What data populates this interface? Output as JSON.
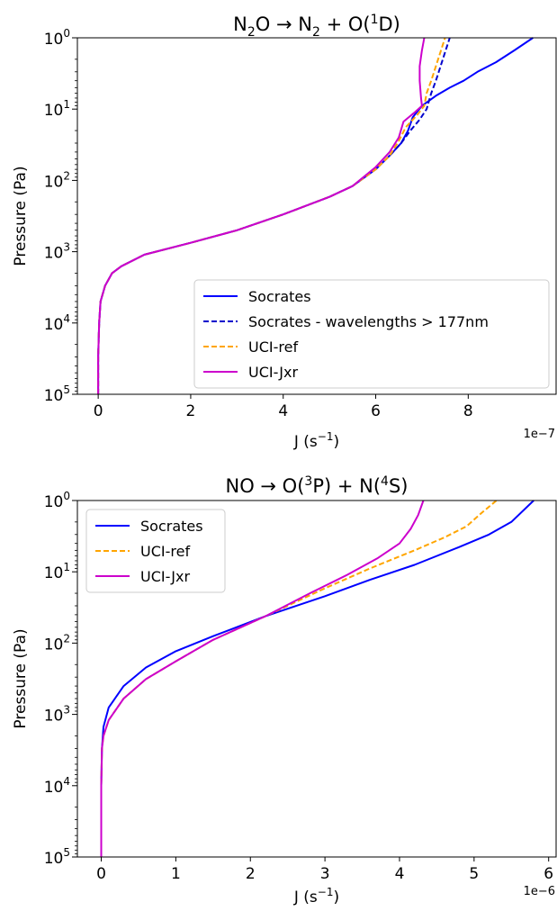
{
  "chart_data": [
    {
      "type": "line",
      "title": "N2O → N2 + O(1D)",
      "title_parts": {
        "a": "N",
        "a_sub": "2",
        "b": "O → N",
        "b_sub": "2",
        "c": " + O(",
        "c_sup": "1",
        "d": "D)"
      },
      "xlabel_parts": {
        "a": "J (s",
        "sup": "−1",
        "b": ")"
      },
      "ylabel": "Pressure (Pa)",
      "x_scale_label": "1e−7",
      "x_scale": 1e-07,
      "xlim": [
        -0.45,
        9.9
      ],
      "ylim": [
        100000,
        1
      ],
      "y_scale": "log",
      "x_ticks": [
        0,
        2,
        4,
        6,
        8
      ],
      "x_tick_labels": [
        "0",
        "2",
        "4",
        "6",
        "8"
      ],
      "y_ticks": [
        {
          "value": 1,
          "base": "10",
          "exp": "0"
        },
        {
          "value": 10,
          "base": "10",
          "exp": "1"
        },
        {
          "value": 100,
          "base": "10",
          "exp": "2"
        },
        {
          "value": 1000,
          "base": "10",
          "exp": "3"
        },
        {
          "value": 10000,
          "base": "10",
          "exp": "4"
        },
        {
          "value": 100000,
          "base": "10",
          "exp": "5"
        }
      ],
      "legend_position": "lower-right",
      "series": [
        {
          "name": "Socrates",
          "color": "#0000ff",
          "dash": "solid",
          "points": [
            [
              0,
              100000
            ],
            [
              0,
              30000
            ],
            [
              0.02,
              10000
            ],
            [
              0.05,
              5000
            ],
            [
              0.15,
              3000
            ],
            [
              0.3,
              2000
            ],
            [
              0.5,
              1600
            ],
            [
              1.0,
              1100
            ],
            [
              2.0,
              750
            ],
            [
              3.0,
              500
            ],
            [
              4.0,
              300
            ],
            [
              5.0,
              170
            ],
            [
              5.5,
              120
            ],
            [
              6.0,
              70
            ],
            [
              6.3,
              45
            ],
            [
              6.55,
              30
            ],
            [
              6.7,
              20
            ],
            [
              6.8,
              13
            ],
            [
              7.0,
              9
            ],
            [
              7.3,
              6.5
            ],
            [
              7.6,
              5
            ],
            [
              7.9,
              4
            ],
            [
              8.2,
              3
            ],
            [
              8.6,
              2.2
            ],
            [
              9.0,
              1.5
            ],
            [
              9.4,
              1
            ]
          ]
        },
        {
          "name": "Socrates - wavelengths > 177nm",
          "color": "#0000cc",
          "dash": "dashed",
          "points": [
            [
              0,
              100000
            ],
            [
              0,
              30000
            ],
            [
              0.02,
              10000
            ],
            [
              0.05,
              5000
            ],
            [
              0.15,
              3000
            ],
            [
              0.3,
              2000
            ],
            [
              0.5,
              1600
            ],
            [
              1.0,
              1100
            ],
            [
              2.0,
              750
            ],
            [
              3.0,
              500
            ],
            [
              4.0,
              300
            ],
            [
              5.0,
              170
            ],
            [
              5.5,
              120
            ],
            [
              6.0,
              70
            ],
            [
              6.3,
              45
            ],
            [
              6.55,
              30
            ],
            [
              6.75,
              20
            ],
            [
              6.95,
              14
            ],
            [
              7.1,
              10
            ],
            [
              7.2,
              6
            ],
            [
              7.3,
              4
            ],
            [
              7.45,
              2
            ],
            [
              7.6,
              1
            ]
          ]
        },
        {
          "name": "UCI-ref",
          "color": "#ffa500",
          "dash": "dashed",
          "points": [
            [
              0,
              100000
            ],
            [
              0,
              30000
            ],
            [
              0.02,
              10000
            ],
            [
              0.05,
              5000
            ],
            [
              0.15,
              3000
            ],
            [
              0.3,
              2000
            ],
            [
              0.5,
              1600
            ],
            [
              1.0,
              1100
            ],
            [
              2.0,
              750
            ],
            [
              3.0,
              500
            ],
            [
              4.0,
              300
            ],
            [
              5.0,
              170
            ],
            [
              5.5,
              120
            ],
            [
              6.0,
              70
            ],
            [
              6.3,
              45
            ],
            [
              6.5,
              28
            ],
            [
              6.65,
              18
            ],
            [
              6.9,
              12
            ],
            [
              7.05,
              9
            ],
            [
              7.1,
              6
            ],
            [
              7.2,
              4
            ],
            [
              7.35,
              2
            ],
            [
              7.5,
              1
            ]
          ]
        },
        {
          "name": "UCI-Jxr",
          "color": "#cc00cc",
          "dash": "solid",
          "points": [
            [
              0,
              100000
            ],
            [
              0,
              30000
            ],
            [
              0.02,
              10000
            ],
            [
              0.05,
              5000
            ],
            [
              0.15,
              3000
            ],
            [
              0.3,
              2000
            ],
            [
              0.5,
              1600
            ],
            [
              1.0,
              1100
            ],
            [
              2.0,
              750
            ],
            [
              3.0,
              500
            ],
            [
              4.0,
              300
            ],
            [
              5.0,
              170
            ],
            [
              5.5,
              120
            ],
            [
              6.0,
              65
            ],
            [
              6.3,
              40
            ],
            [
              6.5,
              25
            ],
            [
              6.6,
              15
            ],
            [
              6.85,
              11
            ],
            [
              7.0,
              9
            ],
            [
              6.98,
              7
            ],
            [
              6.95,
              4
            ],
            [
              6.95,
              2.5
            ],
            [
              7.0,
              1.5
            ],
            [
              7.05,
              1
            ]
          ]
        }
      ]
    },
    {
      "type": "line",
      "title_parts": {
        "a": "NO → O(",
        "a_sup": "3",
        "b": "P) + N(",
        "b_sup": "4",
        "c": "S)"
      },
      "xlabel_parts": {
        "a": "J (s",
        "sup": "−1",
        "b": ")"
      },
      "ylabel": "Pressure (Pa)",
      "x_scale_label": "1e−6",
      "x_scale": 1e-06,
      "xlim": [
        -0.32,
        6.1
      ],
      "ylim": [
        100000,
        1
      ],
      "y_scale": "log",
      "x_ticks": [
        0,
        1,
        2,
        3,
        4,
        5,
        6
      ],
      "x_tick_labels": [
        "0",
        "1",
        "2",
        "3",
        "4",
        "5",
        "6"
      ],
      "y_ticks": [
        {
          "value": 1,
          "base": "10",
          "exp": "0"
        },
        {
          "value": 10,
          "base": "10",
          "exp": "1"
        },
        {
          "value": 100,
          "base": "10",
          "exp": "2"
        },
        {
          "value": 1000,
          "base": "10",
          "exp": "3"
        },
        {
          "value": 10000,
          "base": "10",
          "exp": "4"
        },
        {
          "value": 100000,
          "base": "10",
          "exp": "5"
        }
      ],
      "legend_position": "upper-left",
      "series": [
        {
          "name": "Socrates",
          "color": "#0000ff",
          "dash": "solid",
          "points": [
            [
              0,
              100000
            ],
            [
              0,
              10000
            ],
            [
              0.01,
              3000
            ],
            [
              0.03,
              1500
            ],
            [
              0.1,
              800
            ],
            [
              0.3,
              400
            ],
            [
              0.6,
              220
            ],
            [
              1.0,
              130
            ],
            [
              1.5,
              80
            ],
            [
              2.2,
              42
            ],
            [
              3.0,
              22
            ],
            [
              3.6,
              13
            ],
            [
              4.2,
              8
            ],
            [
              4.8,
              4.5
            ],
            [
              5.2,
              3
            ],
            [
              5.5,
              2
            ],
            [
              5.8,
              1
            ]
          ]
        },
        {
          "name": "UCI-ref",
          "color": "#ffa500",
          "dash": "dashed",
          "points": [
            [
              0,
              100000
            ],
            [
              0,
              10000
            ],
            [
              0.01,
              3000
            ],
            [
              0.03,
              2000
            ],
            [
              0.1,
              1200
            ],
            [
              0.3,
              600
            ],
            [
              0.6,
              320
            ],
            [
              1.0,
              180
            ],
            [
              1.5,
              90
            ],
            [
              2.2,
              42
            ],
            [
              3.0,
              17
            ],
            [
              3.6,
              9
            ],
            [
              4.2,
              5
            ],
            [
              4.6,
              3.3
            ],
            [
              4.9,
              2.3
            ],
            [
              5.1,
              1.5
            ],
            [
              5.3,
              1
            ]
          ]
        },
        {
          "name": "UCI-Jxr",
          "color": "#cc00cc",
          "dash": "solid",
          "points": [
            [
              0,
              100000
            ],
            [
              0,
              10000
            ],
            [
              0.01,
              3000
            ],
            [
              0.03,
              2000
            ],
            [
              0.1,
              1200
            ],
            [
              0.3,
              600
            ],
            [
              0.6,
              320
            ],
            [
              1.0,
              180
            ],
            [
              1.5,
              90
            ],
            [
              2.2,
              42
            ],
            [
              2.8,
              20
            ],
            [
              3.3,
              11
            ],
            [
              3.7,
              6.5
            ],
            [
              4.0,
              4
            ],
            [
              4.15,
              2.5
            ],
            [
              4.25,
              1.6
            ],
            [
              4.32,
              1
            ]
          ]
        }
      ]
    }
  ]
}
